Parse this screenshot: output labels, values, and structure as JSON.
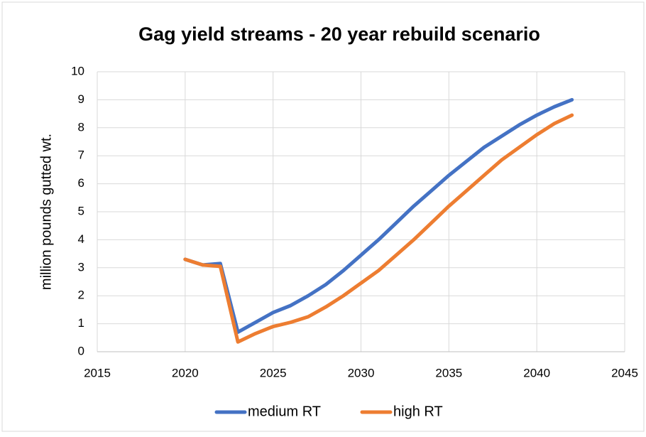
{
  "chart_data": {
    "type": "line",
    "title": "Gag yield streams - 20 year rebuild scenario",
    "y_label": "million pounds gutted wt.",
    "x": [
      2020,
      2021,
      2022,
      2023,
      2024,
      2025,
      2026,
      2027,
      2028,
      2029,
      2030,
      2031,
      2032,
      2033,
      2034,
      2035,
      2036,
      2037,
      2038,
      2039,
      2040,
      2041,
      2042
    ],
    "series": [
      {
        "name": "medium RT",
        "color": "#4472c4",
        "values": [
          3.3,
          3.1,
          3.15,
          0.7,
          1.05,
          1.4,
          1.65,
          2.0,
          2.4,
          2.9,
          3.45,
          4.0,
          4.6,
          5.2,
          5.75,
          6.3,
          6.8,
          7.3,
          7.7,
          8.1,
          8.45,
          8.75,
          9.0
        ]
      },
      {
        "name": "high RT",
        "color": "#ed7d31",
        "values": [
          3.3,
          3.1,
          3.05,
          0.35,
          0.65,
          0.9,
          1.05,
          1.25,
          1.6,
          2.0,
          2.45,
          2.9,
          3.45,
          4.0,
          4.6,
          5.2,
          5.75,
          6.3,
          6.85,
          7.3,
          7.75,
          8.15,
          8.45
        ]
      }
    ],
    "xlim": [
      2015,
      2045
    ],
    "xticks": [
      2015,
      2020,
      2025,
      2030,
      2035,
      2040,
      2045
    ],
    "ylim": [
      0,
      10
    ],
    "yticks": [
      0,
      1,
      2,
      3,
      4,
      5,
      6,
      7,
      8,
      9,
      10
    ],
    "grid": true,
    "legend": "bottom"
  }
}
